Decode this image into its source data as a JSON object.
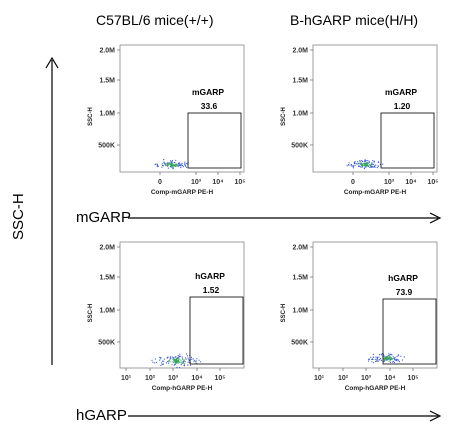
{
  "column_headers": [
    "C57BL/6 mice(+/+)",
    "B-hGARP mice(H/H)"
  ],
  "y_axis_title": "SSC-H",
  "row_labels": [
    "mGARP",
    "hGARP"
  ],
  "colors": {
    "dots": "#3b5bd9",
    "dense": "#3aa85a",
    "gate": "#000000",
    "axis": "#888888"
  },
  "chart_data": [
    {
      "type": "scatter",
      "row": "mGARP",
      "column": "C57BL/6 mice(+/+)",
      "xlabel": "Comp-mGARP PE-H",
      "ylabel": "SSC-H",
      "x_ticks": [
        "0",
        "10³",
        "10⁴",
        "10⁵"
      ],
      "y_ticks": [
        "500K",
        "1.0M",
        "1.5M",
        "2.0M"
      ],
      "gate": {
        "label": "mGARP",
        "value": "33.6"
      }
    },
    {
      "type": "scatter",
      "row": "mGARP",
      "column": "B-hGARP mice(H/H)",
      "xlabel": "Comp-mGARP PE-H",
      "ylabel": "SSC-H",
      "x_ticks": [
        "0",
        "10³",
        "10⁴",
        "10⁵"
      ],
      "y_ticks": [
        "500K",
        "1.0M",
        "1.5M",
        "2.0M"
      ],
      "gate": {
        "label": "mGARP",
        "value": "1.20"
      }
    },
    {
      "type": "scatter",
      "row": "hGARP",
      "column": "C57BL/6 mice(+/+)",
      "xlabel": "Comp-hGARP PE-H",
      "ylabel": "SSC-H",
      "x_ticks": [
        "10¹",
        "10²",
        "10³",
        "10⁴",
        "10⁵"
      ],
      "y_ticks": [
        "500K",
        "1.0M",
        "1.5M",
        "2.0M"
      ],
      "gate": {
        "label": "hGARP",
        "value": "1.52"
      }
    },
    {
      "type": "scatter",
      "row": "hGARP",
      "column": "B-hGARP mice(H/H)",
      "xlabel": "Comp-hGARP PE-H",
      "ylabel": "SSC-H",
      "x_ticks": [
        "10¹",
        "10²",
        "10³",
        "10⁴",
        "10⁵"
      ],
      "y_ticks": [
        "500K",
        "1.0M",
        "1.5M",
        "2.0M"
      ],
      "gate": {
        "label": "hGARP",
        "value": "73.9"
      }
    }
  ]
}
